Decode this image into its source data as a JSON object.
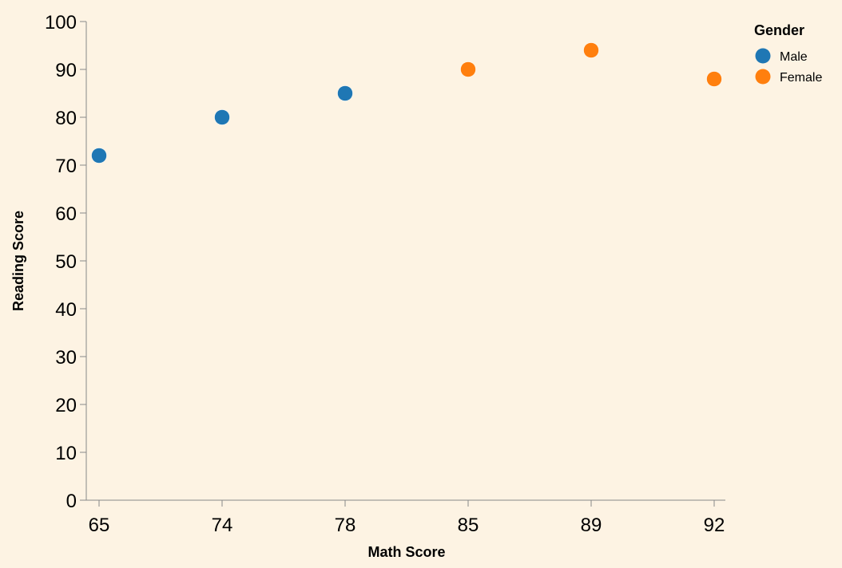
{
  "chart_data": {
    "type": "scatter",
    "xlabel": "Math Score",
    "ylabel": "Reading Score",
    "x_categories": [
      "65",
      "74",
      "78",
      "85",
      "89",
      "92"
    ],
    "yticks": [
      0,
      10,
      20,
      30,
      40,
      50,
      60,
      70,
      80,
      90,
      100
    ],
    "ylim": [
      0,
      100
    ],
    "grid": false,
    "legend": {
      "title": "Gender",
      "placement": "top-right",
      "entries": [
        {
          "label": "Male",
          "color": "#1f77b4"
        },
        {
          "label": "Female",
          "color": "#ff7f0e"
        }
      ]
    },
    "series": [
      {
        "name": "Male",
        "color": "#1f77b4",
        "points": [
          {
            "x": "65",
            "y": 72
          },
          {
            "x": "74",
            "y": 80
          },
          {
            "x": "78",
            "y": 85
          }
        ]
      },
      {
        "name": "Female",
        "color": "#ff7f0e",
        "points": [
          {
            "x": "85",
            "y": 90
          },
          {
            "x": "89",
            "y": 94
          },
          {
            "x": "92",
            "y": 88
          }
        ]
      }
    ]
  },
  "colors": {
    "background": "#fdf3e3",
    "axis": "#888888"
  }
}
